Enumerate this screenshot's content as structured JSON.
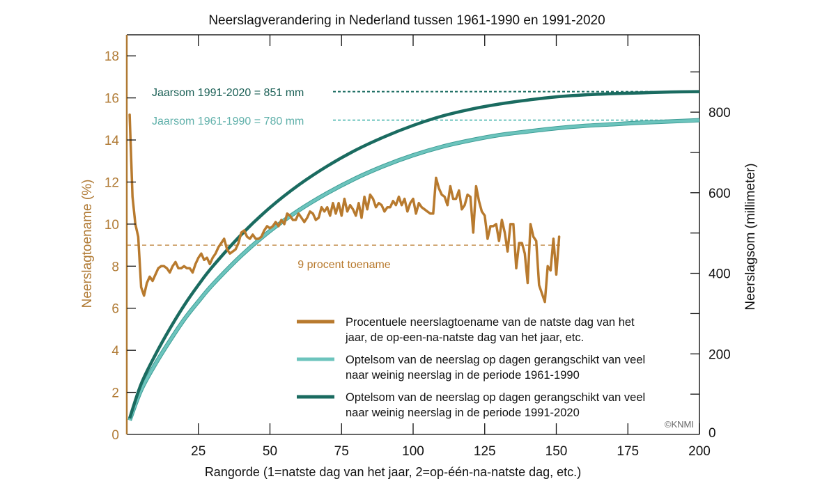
{
  "chart_data": {
    "type": "line",
    "title": "Neerslagverandering in Nederland tussen 1961-1990 en 1991-2020",
    "xlabel": "Rangorde (1=natste dag van het jaar, 2=op-één-na-natste dag, etc.)",
    "ylabel_left": "Neerslagtoename (%)",
    "ylabel_right": "Neerslagsom (millimeter)",
    "xlim": [
      0,
      200
    ],
    "ylim_left": [
      0,
      19
    ],
    "ylim_right": [
      0,
      992
    ],
    "x_ticks": [
      "25",
      "50",
      "75",
      "100",
      "125",
      "150",
      "175",
      "200"
    ],
    "x_tick_values": [
      25,
      50,
      75,
      100,
      125,
      150,
      175,
      200
    ],
    "y_left_ticks": [
      "0",
      "2",
      "4",
      "6",
      "8",
      "10",
      "12",
      "14",
      "16",
      "18"
    ],
    "y_left_tick_values": [
      0,
      2,
      4,
      6,
      8,
      10,
      12,
      14,
      16,
      18
    ],
    "y_right_ticks": [
      "0",
      "200",
      "400",
      "600",
      "800"
    ],
    "y_right_tick_values": [
      0,
      200,
      400,
      600,
      800
    ],
    "y_right_minor_ticks": [
      100,
      300,
      500,
      700,
      900
    ],
    "grid": false,
    "legend_position": "bottom-right",
    "colors": {
      "increase": "#b87a2e",
      "sum_1961_1990": "#6cc4bd",
      "sum_1991_2020": "#1a6b60",
      "axis_left": "#b07a34",
      "annot_1991": "#1a5f55",
      "annot_1961": "#5fb0aa"
    },
    "series": [
      {
        "name": "Procentuele neerslagtoename van de natste dag van het jaar, de op-een-na-natste dag van het jaar, etc.",
        "axis": "left",
        "x": [
          1,
          2,
          3,
          4,
          5,
          6,
          7,
          8,
          9,
          10,
          11,
          12,
          13,
          14,
          15,
          16,
          17,
          18,
          19,
          20,
          21,
          22,
          23,
          24,
          25,
          26,
          27,
          28,
          29,
          30,
          31,
          32,
          33,
          34,
          35,
          36,
          37,
          38,
          39,
          40,
          41,
          42,
          43,
          44,
          45,
          46,
          47,
          48,
          49,
          50,
          51,
          52,
          53,
          54,
          55,
          56,
          57,
          58,
          59,
          60,
          61,
          62,
          63,
          64,
          65,
          66,
          67,
          68,
          69,
          70,
          71,
          72,
          73,
          74,
          75,
          76,
          77,
          78,
          79,
          80,
          81,
          82,
          83,
          84,
          85,
          86,
          87,
          88,
          89,
          90,
          91,
          92,
          93,
          94,
          95,
          96,
          97,
          98,
          99,
          100,
          101,
          102,
          103,
          104,
          105,
          106,
          107,
          108,
          109,
          110,
          111,
          112,
          113,
          114,
          115,
          116,
          117,
          118,
          119,
          120,
          121,
          122,
          123,
          124,
          125,
          126,
          127,
          128,
          129,
          130,
          131,
          132,
          133,
          134,
          135,
          136,
          137,
          138,
          139,
          140,
          141,
          142,
          143,
          144,
          145,
          146,
          147,
          148,
          149,
          150,
          151
        ],
        "values": [
          15.2,
          11.3,
          10.0,
          9.4,
          7.0,
          6.6,
          7.2,
          7.5,
          7.3,
          7.6,
          7.9,
          8.0,
          8.0,
          7.9,
          7.7,
          8.0,
          8.2,
          7.9,
          7.9,
          8.0,
          7.9,
          7.9,
          7.7,
          8.1,
          8.4,
          8.6,
          8.3,
          8.4,
          8.1,
          8.4,
          8.6,
          8.9,
          9.1,
          9.3,
          8.8,
          8.6,
          8.7,
          8.8,
          9.1,
          9.6,
          9.7,
          9.4,
          9.3,
          9.5,
          9.3,
          9.3,
          9.4,
          9.7,
          9.9,
          9.8,
          9.9,
          10.1,
          9.9,
          10.2,
          10.0,
          10.5,
          10.4,
          10.2,
          10.2,
          10.5,
          10.3,
          10.1,
          10.3,
          10.6,
          10.5,
          10.2,
          10.3,
          10.8,
          10.6,
          10.8,
          10.4,
          11.0,
          10.5,
          11.0,
          10.4,
          11.2,
          10.6,
          10.9,
          10.7,
          10.4,
          11.0,
          10.3,
          11.3,
          10.7,
          11.4,
          11.2,
          10.8,
          11.0,
          10.9,
          10.6,
          10.8,
          10.8,
          11.1,
          10.9,
          11.3,
          10.9,
          11.2,
          10.6,
          11.0,
          11.2,
          10.5,
          11.0,
          10.8,
          10.7,
          10.6,
          10.5,
          10.5,
          12.2,
          11.7,
          11.4,
          11.3,
          10.9,
          11.8,
          11.2,
          11.2,
          11.6,
          10.7,
          10.9,
          11.4,
          11.3,
          9.6,
          11.8,
          11.1,
          10.6,
          10.4,
          9.3,
          9.9,
          9.9,
          10.0,
          9.2,
          10.2,
          9.6,
          8.7,
          10.0,
          10.0,
          7.9,
          9.1,
          9.1,
          8.6,
          7.2,
          10.0,
          9.4,
          9.2,
          7.1,
          6.7,
          6.3,
          8.0,
          7.8,
          9.3,
          7.6,
          9.4
        ]
      },
      {
        "name": "Optelsom van de neerslag op dagen gerangschikt van veel naar weinig neerslag in de periode 1961-1990",
        "axis": "right",
        "x": [
          1,
          5,
          10,
          15,
          20,
          25,
          30,
          40,
          50,
          60,
          70,
          80,
          90,
          100,
          110,
          120,
          130,
          140,
          150,
          160,
          170,
          180,
          190,
          200
        ],
        "values": [
          35,
          110,
          175,
          232,
          285,
          330,
          372,
          444,
          505,
          556,
          599,
          636,
          667,
          693,
          714,
          730,
          743,
          752,
          760,
          766,
          770,
          774,
          777,
          780
        ]
      },
      {
        "name": "Optelsom van de neerslag op dagen gerangschikt van veel naar weinig neerslag in de periode 1991-2020",
        "axis": "right",
        "x": [
          1,
          5,
          10,
          15,
          20,
          25,
          30,
          40,
          50,
          60,
          70,
          80,
          90,
          100,
          110,
          120,
          130,
          140,
          150,
          160,
          170,
          180,
          190,
          200
        ],
        "values": [
          40,
          125,
          198,
          262,
          320,
          371,
          417,
          496,
          563,
          619,
          666,
          706,
          739,
          767,
          790,
          807,
          820,
          830,
          838,
          843,
          846,
          848,
          850,
          851
        ]
      }
    ],
    "reference_lines": [
      {
        "axis": "left",
        "value": 9,
        "label": "9 procent toename",
        "x_range": [
          0,
          152
        ]
      },
      {
        "axis": "right",
        "value": 851,
        "label": "Jaarsom 1991-2020 = 851 mm"
      },
      {
        "axis": "right",
        "value": 780,
        "label": "Jaarsom 1961-1990 = 780 mm"
      }
    ],
    "legend": [
      {
        "line1": "Procentuele neerslagtoename van de natste dag van het",
        "line2": "jaar, de op-een-na-natste dag van het jaar, etc."
      },
      {
        "line1": "Optelsom van de neerslag op dagen gerangschikt van veel",
        "line2": "naar weinig neerslag in de periode 1961-1990"
      },
      {
        "line1": "Optelsom van de neerslag op dagen gerangschikt van veel",
        "line2": "naar weinig neerslag in de periode 1991-2020"
      }
    ],
    "copyright": "©KNMI"
  }
}
